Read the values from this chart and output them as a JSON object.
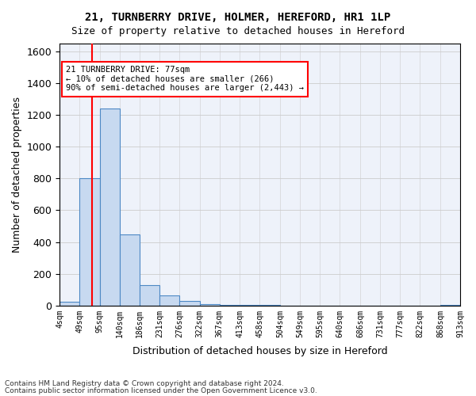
{
  "title1": "21, TURNBERRY DRIVE, HOLMER, HEREFORD, HR1 1LP",
  "title2": "Size of property relative to detached houses in Hereford",
  "xlabel": "Distribution of detached houses by size in Hereford",
  "ylabel": "Number of detached properties",
  "bin_edges": [
    4,
    49,
    95,
    140,
    186,
    231,
    276,
    322,
    367,
    413,
    458,
    504,
    549,
    595,
    640,
    686,
    731,
    777,
    822,
    868,
    913
  ],
  "bar_heights": [
    25,
    800,
    1240,
    450,
    130,
    65,
    30,
    10,
    5,
    3,
    2,
    1,
    1,
    1,
    0,
    0,
    0,
    0,
    0,
    5
  ],
  "bar_facecolor": "#c7d9f0",
  "bar_edgecolor": "#4d88c4",
  "grid_color": "#cccccc",
  "vline_x": 77,
  "vline_color": "red",
  "annotation_text": "21 TURNBERRY DRIVE: 77sqm\n← 10% of detached houses are smaller (266)\n90% of semi-detached houses are larger (2,443) →",
  "annotation_box_color": "red",
  "ylim": [
    0,
    1650
  ],
  "yticks": [
    0,
    200,
    400,
    600,
    800,
    1000,
    1200,
    1400,
    1600
  ],
  "tick_label_vals": [
    4,
    49,
    95,
    140,
    186,
    231,
    276,
    322,
    367,
    413,
    458,
    504,
    549,
    595,
    640,
    686,
    731,
    777,
    822,
    868,
    913
  ],
  "footer1": "Contains HM Land Registry data © Crown copyright and database right 2024.",
  "footer2": "Contains public sector information licensed under the Open Government Licence v3.0.",
  "bg_color": "#eef2fa"
}
